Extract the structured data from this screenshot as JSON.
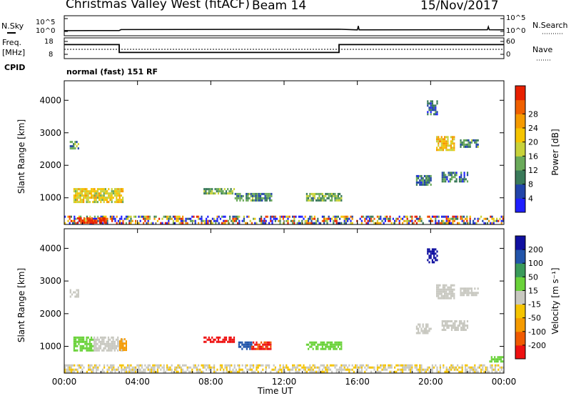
{
  "header": {
    "station": "Christmas Valley West (fitACF)",
    "beam": "Beam 14",
    "date": "15/Nov/2017"
  },
  "left_labels": {
    "nsky": "N.Sky",
    "freq_line1": "Freq.",
    "freq_line2": "[MHz]",
    "cpid": "CPID"
  },
  "right_labels": {
    "nsearch": "N.Search",
    "nave": "Nave"
  },
  "cpid_text": "normal (fast) 151 RF",
  "colors": {
    "power_scale": [
      "#1f1fff",
      "#2244aa",
      "#3a7a5a",
      "#6aaa5a",
      "#c8d23a",
      "#f5c400",
      "#f59a00",
      "#f06000",
      "#e82000"
    ],
    "velocity_scale": [
      "#ee1111",
      "#f05a00",
      "#f59a00",
      "#f5c400",
      "#c8c8c0",
      "#6ad23a",
      "#3a9a5a",
      "#2255aa",
      "#1010a0"
    ]
  },
  "chart_data": [
    {
      "type": "line",
      "panel": "noise",
      "left_ticks": [
        "10^5",
        "10^0"
      ],
      "right_ticks": [
        "10^5",
        "10^0"
      ],
      "left_label": "N.Sky",
      "right_label": "N.Search",
      "series": [
        {
          "x": [
            0,
            3,
            3.1,
            15,
            16,
            16.05,
            16.1,
            23.1,
            23.15,
            23.2,
            24
          ],
          "y": [
            0.5,
            0.6,
            1.2,
            1.4,
            1.0,
            3.5,
            1.0,
            1.1,
            3.0,
            1.1,
            1.0
          ]
        }
      ]
    },
    {
      "type": "line",
      "panel": "frequency",
      "left_ticks": [
        "18",
        "8"
      ],
      "right_ticks": [
        "60",
        "0"
      ],
      "left_label": "Freq. [MHz]",
      "right_label": "Nave",
      "series": [
        {
          "name": "Freq.",
          "x": [
            0,
            3,
            3,
            15,
            15,
            24
          ],
          "y": [
            16,
            16,
            11,
            11,
            16,
            16
          ]
        },
        {
          "name": "Nave",
          "x": [
            0,
            24
          ],
          "y": [
            30,
            30
          ]
        }
      ]
    },
    {
      "type": "heatmap",
      "panel": "power",
      "ylabel": "Slant Range [km]",
      "yticks": [
        1000,
        2000,
        3000,
        4000
      ],
      "ylim": [
        180,
        4600
      ],
      "xlim": [
        0,
        24
      ],
      "colorbar_label": "Power [dB]",
      "colorbar_ticks": [
        4,
        8,
        12,
        16,
        20,
        24,
        28
      ],
      "clim": [
        0,
        32
      ],
      "echo_regions": [
        {
          "t0": 0.3,
          "t1": 0.8,
          "r0": 2500,
          "r1": 2750,
          "value": 10
        },
        {
          "t0": 0.5,
          "t1": 3.2,
          "r0": 900,
          "r1": 1300,
          "value": 18
        },
        {
          "t0": 7.6,
          "t1": 9.3,
          "r0": 1150,
          "r1": 1300,
          "value": 12
        },
        {
          "t0": 9.3,
          "t1": 11.3,
          "r0": 900,
          "r1": 1150,
          "value": 10
        },
        {
          "t0": 13.2,
          "t1": 15.1,
          "r0": 900,
          "r1": 1150,
          "value": 12
        },
        {
          "t0": 19.2,
          "t1": 20.0,
          "r0": 1400,
          "r1": 1700,
          "value": 8
        },
        {
          "t0": 20.6,
          "t1": 22.0,
          "r0": 1500,
          "r1": 1800,
          "value": 8
        },
        {
          "t0": 19.8,
          "t1": 20.4,
          "r0": 3600,
          "r1": 4000,
          "value": 6
        },
        {
          "t0": 20.3,
          "t1": 21.3,
          "r0": 2500,
          "r1": 2900,
          "value": 20
        },
        {
          "t0": 21.6,
          "t1": 22.6,
          "r0": 2600,
          "r1": 2800,
          "value": 10
        },
        {
          "t0": 0,
          "t1": 24,
          "r0": 220,
          "r1": 450,
          "value": 14
        },
        {
          "t0": 0.7,
          "t1": 2.3,
          "r0": 240,
          "r1": 400,
          "value": 30
        }
      ]
    },
    {
      "type": "heatmap",
      "panel": "velocity",
      "ylabel": "Slant Range [km]",
      "xlabel": "Time UT",
      "yticks": [
        1000,
        2000,
        3000,
        4000
      ],
      "ylim": [
        180,
        4600
      ],
      "xlim": [
        0,
        24
      ],
      "xtick_labels": [
        "00:00",
        "04:00",
        "08:00",
        "12:00",
        "16:00",
        "20:00",
        "00:00"
      ],
      "colorbar_label": "Velocity [m s⁻¹]",
      "colorbar_ticks": [
        -200,
        -100,
        -50,
        -15,
        15,
        50,
        100,
        200
      ],
      "echo_regions": [
        {
          "t0": 0.3,
          "t1": 0.8,
          "r0": 2500,
          "r1": 2750,
          "value": 0
        },
        {
          "t0": 0.5,
          "t1": 1.6,
          "r0": 900,
          "r1": 1300,
          "value": 40
        },
        {
          "t0": 1.6,
          "t1": 3.2,
          "r0": 900,
          "r1": 1300,
          "value": 0
        },
        {
          "t0": 3.0,
          "t1": 3.4,
          "r0": 900,
          "r1": 1250,
          "value": -60
        },
        {
          "t0": 7.6,
          "t1": 9.3,
          "r0": 1150,
          "r1": 1300,
          "value": -220
        },
        {
          "t0": 9.5,
          "t1": 10.2,
          "r0": 950,
          "r1": 1150,
          "value": 180
        },
        {
          "t0": 10.2,
          "t1": 11.3,
          "r0": 900,
          "r1": 1150,
          "value": -200
        },
        {
          "t0": 13.2,
          "t1": 15.1,
          "r0": 900,
          "r1": 1150,
          "value": 40
        },
        {
          "t0": 19.2,
          "t1": 20.0,
          "r0": 1400,
          "r1": 1700,
          "value": 0
        },
        {
          "t0": 20.6,
          "t1": 22.0,
          "r0": 1500,
          "r1": 1800,
          "value": 0
        },
        {
          "t0": 19.8,
          "t1": 20.4,
          "r0": 3600,
          "r1": 4000,
          "value": 220
        },
        {
          "t0": 20.3,
          "t1": 21.3,
          "r0": 2500,
          "r1": 2900,
          "value": 0
        },
        {
          "t0": 21.6,
          "t1": 22.6,
          "r0": 2600,
          "r1": 2800,
          "value": 0
        },
        {
          "t0": 23.2,
          "t1": 23.9,
          "r0": 550,
          "r1": 700,
          "value": 40
        },
        {
          "t0": 0,
          "t1": 24,
          "r0": 220,
          "r1": 450,
          "value": -10
        }
      ]
    }
  ]
}
